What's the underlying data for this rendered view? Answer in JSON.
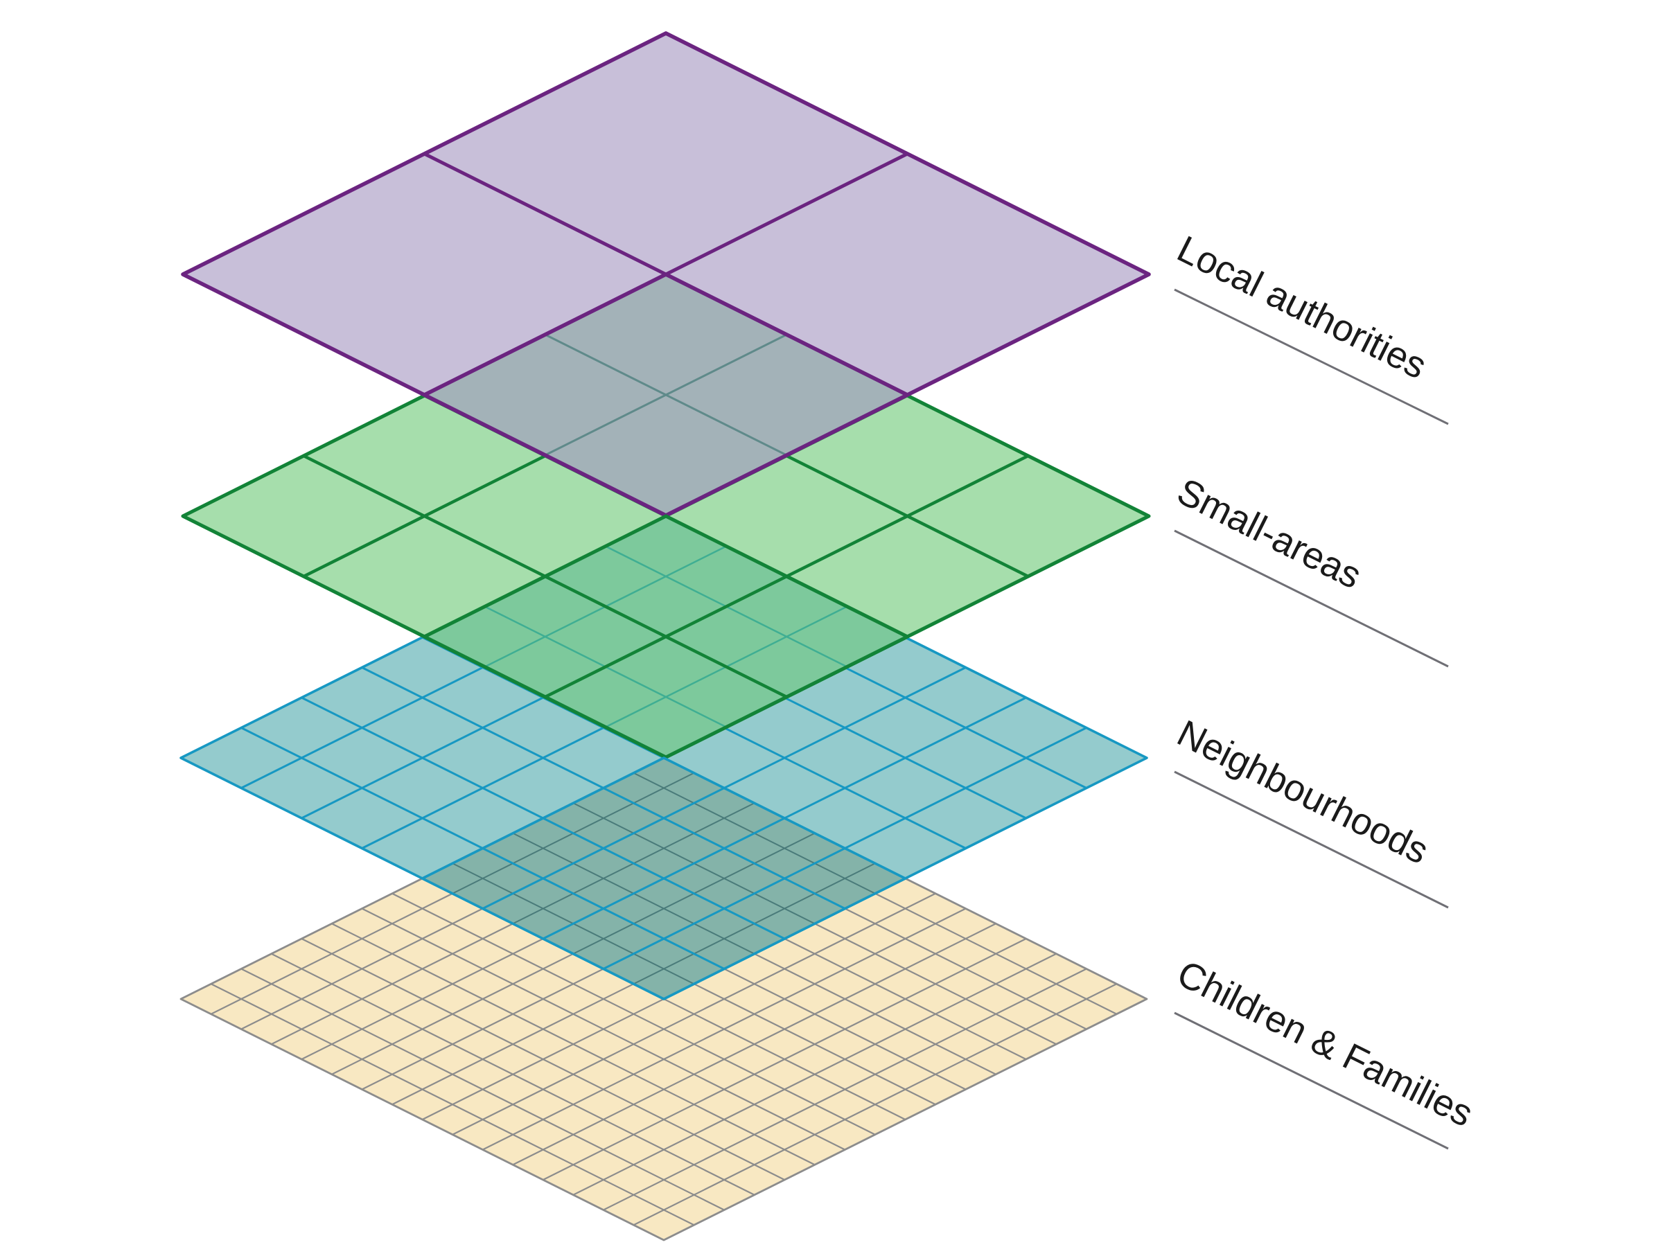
{
  "layers": [
    {
      "key": "local-authorities",
      "label": "Local authorities",
      "grid_cells": 2,
      "fill": "#c8bfd9",
      "stroke": "#6b2480"
    },
    {
      "key": "small-areas",
      "label": "Small-areas",
      "grid_cells": 4,
      "fill": "#a6deac",
      "stroke": "#128337"
    },
    {
      "key": "neighbourhoods",
      "label": "Neighbourhoods",
      "grid_cells": 8,
      "fill": "#94cbcd",
      "stroke": "#1798c2"
    },
    {
      "key": "children-families",
      "label": "Children & Families",
      "grid_cells": 16,
      "fill": "#f8e8c2",
      "stroke": "#8c8c8c"
    }
  ],
  "colors": {
    "overlap_top": "#a3b2b8",
    "overlap_top_grid": "#5f8a8a",
    "overlap_middle": "#7dc99c",
    "overlap_middle_grid": "#3fae93",
    "overlap_bottom": "#84b3a9",
    "overlap_bottom_grid": "#4a7b7a",
    "leader_line": "#6f6f75"
  }
}
